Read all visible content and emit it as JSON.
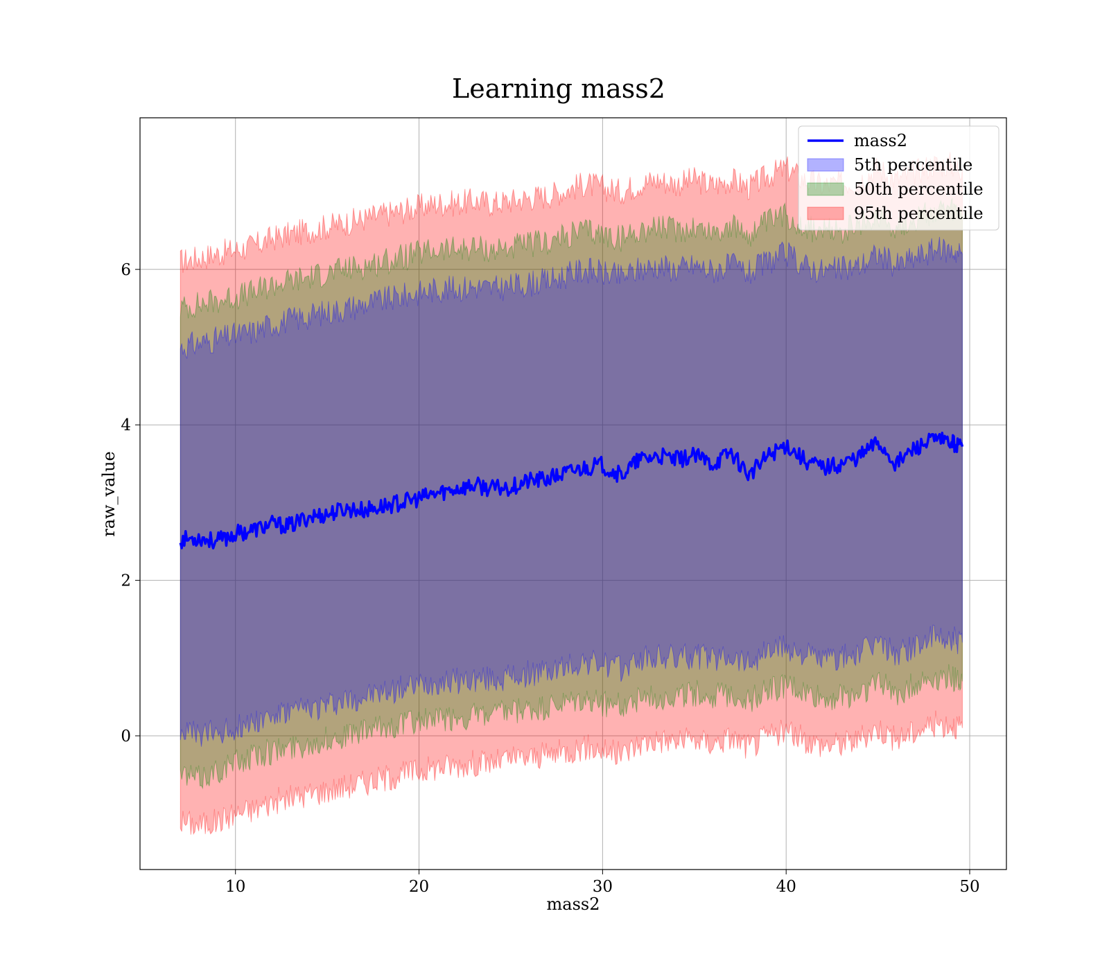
{
  "chart_data": {
    "type": "area",
    "title": "Learning mass2",
    "xlabel": "mass2",
    "ylabel": "raw_value",
    "xlim": [
      4.8,
      52.0
    ],
    "ylim": [
      -1.72,
      7.95
    ],
    "xticks": [
      10,
      20,
      30,
      40,
      50
    ],
    "yticks": [
      0,
      2,
      4,
      6
    ],
    "grid": true,
    "legend_position": "top-right",
    "x": [
      7.0,
      8.0,
      9.0,
      10.0,
      11.0,
      12.0,
      13.0,
      14.0,
      15.0,
      16.0,
      17.0,
      18.0,
      19.0,
      20.0,
      21.0,
      22.0,
      23.0,
      24.0,
      25.0,
      26.0,
      27.0,
      28.0,
      29.0,
      30.0,
      31.0,
      32.0,
      33.0,
      34.0,
      35.0,
      36.0,
      37.0,
      38.0,
      39.0,
      40.0,
      41.0,
      42.0,
      43.0,
      44.0,
      45.0,
      46.0,
      47.0,
      48.0,
      49.0,
      49.6
    ],
    "series": [
      {
        "name": "mass2",
        "kind": "line",
        "color": "#0000ff",
        "values": [
          2.52,
          2.55,
          2.5,
          2.6,
          2.65,
          2.72,
          2.7,
          2.82,
          2.85,
          2.92,
          2.9,
          2.95,
          3.0,
          3.05,
          3.12,
          3.18,
          3.22,
          3.18,
          3.2,
          3.28,
          3.3,
          3.38,
          3.45,
          3.48,
          3.35,
          3.55,
          3.6,
          3.55,
          3.6,
          3.5,
          3.65,
          3.35,
          3.6,
          3.75,
          3.55,
          3.45,
          3.5,
          3.6,
          3.78,
          3.5,
          3.7,
          3.8,
          3.78,
          3.72
        ]
      },
      {
        "name": "5th percentile",
        "kind": "band",
        "color": "#0000ff",
        "lower": [
          0.08,
          0.0,
          0.05,
          0.1,
          0.2,
          0.25,
          0.3,
          0.35,
          0.4,
          0.45,
          0.5,
          0.55,
          0.6,
          0.65,
          0.7,
          0.7,
          0.72,
          0.72,
          0.75,
          0.8,
          0.82,
          0.88,
          0.95,
          0.92,
          0.85,
          0.98,
          1.0,
          1.0,
          1.02,
          1.0,
          1.05,
          0.95,
          1.1,
          1.15,
          1.05,
          0.98,
          1.0,
          1.05,
          1.2,
          1.05,
          1.15,
          1.25,
          1.25,
          1.2
        ],
        "upper": [
          5.0,
          5.05,
          5.1,
          5.15,
          5.2,
          5.3,
          5.35,
          5.4,
          5.45,
          5.5,
          5.55,
          5.6,
          5.65,
          5.7,
          5.75,
          5.75,
          5.78,
          5.75,
          5.78,
          5.82,
          5.85,
          5.92,
          6.0,
          5.95,
          5.9,
          6.0,
          6.05,
          6.0,
          6.05,
          5.98,
          6.05,
          5.95,
          6.1,
          6.2,
          6.05,
          5.98,
          6.0,
          6.05,
          6.2,
          6.05,
          6.15,
          6.25,
          6.25,
          6.2
        ]
      },
      {
        "name": "50th percentile",
        "kind": "band",
        "color": "#008000",
        "lower": [
          -0.5,
          -0.55,
          -0.45,
          -0.35,
          -0.25,
          -0.2,
          -0.15,
          -0.1,
          -0.05,
          0.0,
          0.05,
          0.1,
          0.15,
          0.2,
          0.2,
          0.22,
          0.25,
          0.25,
          0.3,
          0.32,
          0.35,
          0.4,
          0.45,
          0.42,
          0.38,
          0.48,
          0.5,
          0.5,
          0.55,
          0.5,
          0.55,
          0.45,
          0.6,
          0.65,
          0.55,
          0.48,
          0.5,
          0.55,
          0.7,
          0.55,
          0.65,
          0.75,
          0.75,
          0.7
        ],
        "upper": [
          5.5,
          5.55,
          5.6,
          5.65,
          5.7,
          5.8,
          5.85,
          5.9,
          5.95,
          6.0,
          6.05,
          6.1,
          6.15,
          6.2,
          6.25,
          6.25,
          6.28,
          6.25,
          6.28,
          6.32,
          6.35,
          6.42,
          6.5,
          6.45,
          6.4,
          6.5,
          6.55,
          6.5,
          6.55,
          6.48,
          6.55,
          6.45,
          6.6,
          6.7,
          6.55,
          6.48,
          6.5,
          6.55,
          6.7,
          6.55,
          6.65,
          6.75,
          6.75,
          6.7
        ]
      },
      {
        "name": "95th percentile",
        "kind": "band",
        "color": "#ff0000",
        "lower": [
          -1.1,
          -1.15,
          -1.1,
          -1.0,
          -0.95,
          -0.85,
          -0.8,
          -0.75,
          -0.7,
          -0.65,
          -0.6,
          -0.55,
          -0.5,
          -0.45,
          -0.4,
          -0.38,
          -0.35,
          -0.35,
          -0.3,
          -0.28,
          -0.25,
          -0.2,
          -0.15,
          -0.18,
          -0.25,
          -0.1,
          -0.05,
          -0.08,
          -0.05,
          -0.1,
          -0.02,
          -0.15,
          0.0,
          0.05,
          -0.05,
          -0.12,
          -0.1,
          -0.05,
          0.1,
          -0.05,
          0.05,
          0.15,
          0.15,
          0.1
        ],
        "upper": [
          6.1,
          6.15,
          6.2,
          6.25,
          6.3,
          6.4,
          6.45,
          6.5,
          6.55,
          6.6,
          6.65,
          6.7,
          6.75,
          6.8,
          6.85,
          6.85,
          6.88,
          6.85,
          6.88,
          6.92,
          6.95,
          7.02,
          7.1,
          7.05,
          7.0,
          7.1,
          7.15,
          7.1,
          7.15,
          7.08,
          7.15,
          7.05,
          7.2,
          7.3,
          7.15,
          7.08,
          7.1,
          7.15,
          7.3,
          7.15,
          7.25,
          7.35,
          7.35,
          7.3
        ]
      }
    ]
  }
}
